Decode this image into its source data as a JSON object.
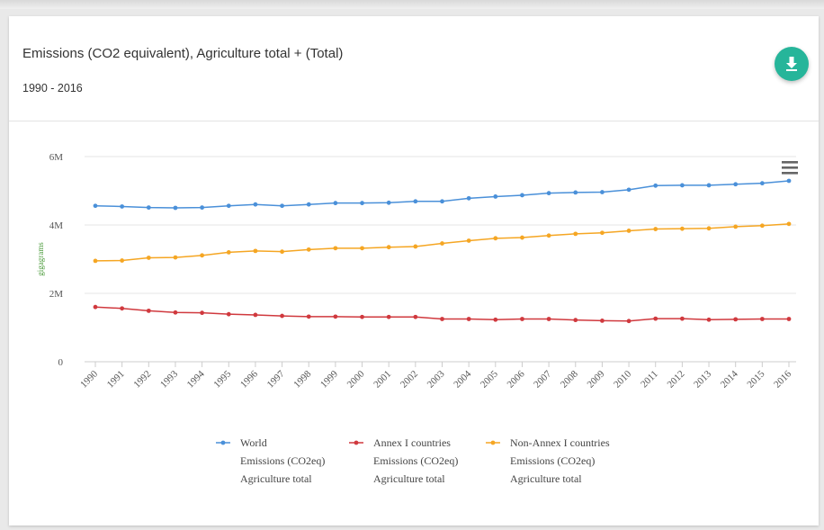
{
  "header": {
    "title": "Emissions (CO2 equivalent), Agriculture total + (Total)",
    "subtitle": "1990 - 2016"
  },
  "icons": {
    "download": "download-icon",
    "menu": "hamburger-menu-icon"
  },
  "chart_data": {
    "type": "line",
    "ylabel": "gigagrams",
    "ylim": [
      0,
      6000000
    ],
    "yticks": [
      0,
      2000000,
      4000000,
      6000000
    ],
    "ytick_labels": [
      "0",
      "2M",
      "4M",
      "6M"
    ],
    "grid": true,
    "legend_position": "bottom",
    "x": [
      "1990",
      "1991",
      "1992",
      "1993",
      "1994",
      "1995",
      "1996",
      "1997",
      "1998",
      "1999",
      "2000",
      "2001",
      "2002",
      "2003",
      "2004",
      "2005",
      "2006",
      "2007",
      "2008",
      "2009",
      "2010",
      "2011",
      "2012",
      "2013",
      "2014",
      "2015",
      "2016"
    ],
    "series": [
      {
        "name": "World",
        "legend_lines": [
          "World",
          "Emissions (CO2eq)",
          "Agriculture total"
        ],
        "color": "#4a90d9",
        "values": [
          4560000,
          4540000,
          4510000,
          4500000,
          4510000,
          4560000,
          4600000,
          4560000,
          4600000,
          4640000,
          4640000,
          4650000,
          4690000,
          4690000,
          4780000,
          4830000,
          4870000,
          4930000,
          4950000,
          4960000,
          5030000,
          5150000,
          5160000,
          5160000,
          5190000,
          5220000,
          5290000
        ]
      },
      {
        "name": "Annex I countries",
        "legend_lines": [
          "Annex I countries",
          "Emissions (CO2eq)",
          "Agriculture total"
        ],
        "color": "#d0393e",
        "values": [
          1600000,
          1560000,
          1490000,
          1440000,
          1430000,
          1390000,
          1370000,
          1340000,
          1320000,
          1320000,
          1310000,
          1310000,
          1310000,
          1250000,
          1250000,
          1230000,
          1250000,
          1250000,
          1220000,
          1200000,
          1190000,
          1260000,
          1260000,
          1230000,
          1240000,
          1250000,
          1250000
        ]
      },
      {
        "name": "Non-Annex I countries",
        "legend_lines": [
          "Non-Annex I countries",
          "Emissions (CO2eq)",
          "Agriculture total"
        ],
        "color": "#f5a623",
        "values": [
          2950000,
          2960000,
          3040000,
          3050000,
          3110000,
          3200000,
          3240000,
          3220000,
          3280000,
          3320000,
          3320000,
          3350000,
          3370000,
          3460000,
          3540000,
          3610000,
          3630000,
          3690000,
          3740000,
          3770000,
          3830000,
          3880000,
          3890000,
          3900000,
          3950000,
          3980000,
          4030000
        ]
      }
    ]
  }
}
